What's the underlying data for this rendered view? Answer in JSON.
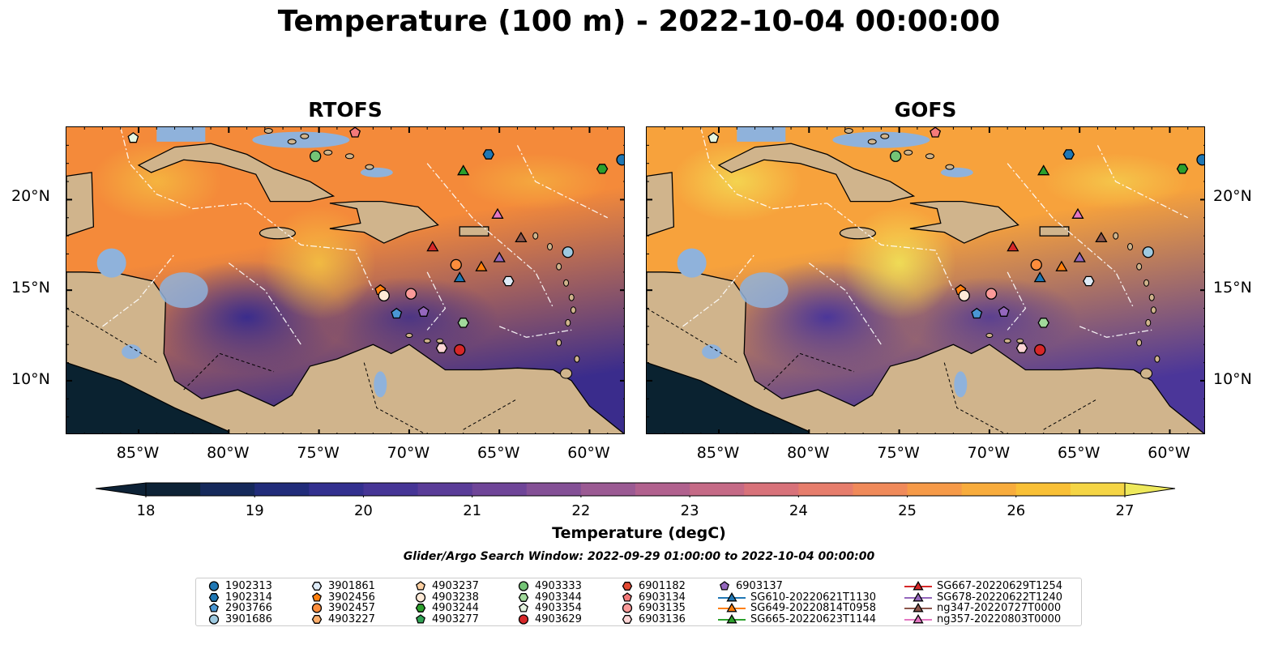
{
  "title": "Temperature (100 m) - 2022-10-04 00:00:00",
  "panels": [
    {
      "name": "RTOFS",
      "palette": {
        "cool": "#3a2c8c",
        "warm": "#f48a3a",
        "hot": "#f5c542"
      }
    },
    {
      "name": "GOFS",
      "palette": {
        "cool": "#4b3699",
        "warm": "#f7a23c",
        "hot": "#f2e858"
      }
    }
  ],
  "x_ticks": [
    "85°W",
    "80°W",
    "75°W",
    "70°W",
    "65°W",
    "60°W"
  ],
  "y_ticks": [
    "20°N",
    "15°N",
    "10°N"
  ],
  "colorbar": {
    "title": "Temperature (degC)",
    "ticks": [
      "18",
      "19",
      "20",
      "21",
      "22",
      "23",
      "24",
      "25",
      "26",
      "27"
    ],
    "colors": [
      "#0d2236",
      "#15295b",
      "#212c7a",
      "#33308f",
      "#463596",
      "#5a3c98",
      "#6f4598",
      "#845096",
      "#9b5a93",
      "#b1618e",
      "#c56a86",
      "#d8727a",
      "#e67d6c",
      "#f08a5a",
      "#f69a48",
      "#f8ac3c",
      "#f9c036",
      "#f5d545",
      "#eee95c"
    ]
  },
  "search_window": "Glider/Argo Search Window: 2022-09-29 01:00:00 to 2022-10-04 00:00:00",
  "colors": {
    "land": "#d0b48c",
    "pacific": "#0a2230",
    "lake": "#8fb2db"
  },
  "legend": [
    {
      "label": "1902313",
      "shape": "circle",
      "color": "#1f77b4"
    },
    {
      "label": "1902314",
      "shape": "hexagon",
      "color": "#1f77b4"
    },
    {
      "label": "2903766",
      "shape": "pentagon",
      "color": "#4a97d4"
    },
    {
      "label": "3901686",
      "shape": "circle",
      "color": "#9ecae1"
    },
    {
      "label": "3901861",
      "shape": "hexagon",
      "color": "#deebf7"
    },
    {
      "label": "3902456",
      "shape": "pentagon",
      "color": "#ff7f0e"
    },
    {
      "label": "3902457",
      "shape": "circle",
      "color": "#fd8d3c"
    },
    {
      "label": "4903227",
      "shape": "hexagon",
      "color": "#fdae6b"
    },
    {
      "label": "4903237",
      "shape": "pentagon",
      "color": "#fdd0a2"
    },
    {
      "label": "4903238",
      "shape": "circle",
      "color": "#feead7"
    },
    {
      "label": "4903244",
      "shape": "hexagon",
      "color": "#2ca02c"
    },
    {
      "label": "4903277",
      "shape": "pentagon",
      "color": "#31a354"
    },
    {
      "label": "4903333",
      "shape": "circle",
      "color": "#74c476"
    },
    {
      "label": "4903344",
      "shape": "hexagon",
      "color": "#a1d99b"
    },
    {
      "label": "4903354",
      "shape": "pentagon",
      "color": "#e5f5e0"
    },
    {
      "label": "4903629",
      "shape": "circle",
      "color": "#d62728"
    },
    {
      "label": "6901182",
      "shape": "hexagon",
      "color": "#e34a33"
    },
    {
      "label": "6903134",
      "shape": "pentagon",
      "color": "#f47a7a"
    },
    {
      "label": "6903135",
      "shape": "circle",
      "color": "#fb9a99"
    },
    {
      "label": "6903136",
      "shape": "hexagon",
      "color": "#fdd5d5"
    },
    {
      "label": "6903137",
      "shape": "pentagon",
      "color": "#9467bd"
    },
    {
      "label": "SG610-20220621T1130",
      "shape": "triangle",
      "color": "#1f77b4"
    },
    {
      "label": "SG649-20220814T0958",
      "shape": "triangle",
      "color": "#ff7f0e"
    },
    {
      "label": "SG665-20220623T1144",
      "shape": "triangle",
      "color": "#2ca02c"
    },
    {
      "label": "SG667-20220629T1254",
      "shape": "triangle",
      "color": "#d62728"
    },
    {
      "label": "SG678-20220622T1240",
      "shape": "triangle",
      "color": "#9467bd"
    },
    {
      "label": "ng347-20220727T0000",
      "shape": "triangle",
      "color": "#8c564b"
    },
    {
      "label": "ng357-20220803T0000",
      "shape": "triangle",
      "color": "#e377c2"
    }
  ],
  "markers": [
    {
      "lon": -85.3,
      "lat": 23.4,
      "ref": 14
    },
    {
      "lon": -75.2,
      "lat": 22.4,
      "ref": 12
    },
    {
      "lon": -73.0,
      "lat": 23.7,
      "ref": 17
    },
    {
      "lon": -67.0,
      "lat": 21.6,
      "ref": 23
    },
    {
      "lon": -65.6,
      "lat": 22.5,
      "ref": 1
    },
    {
      "lon": -59.3,
      "lat": 21.7,
      "ref": 10
    },
    {
      "lon": -58.2,
      "lat": 22.2,
      "ref": 0
    },
    {
      "lon": -65.1,
      "lat": 19.2,
      "ref": 27
    },
    {
      "lon": -68.7,
      "lat": 17.4,
      "ref": 24
    },
    {
      "lon": -67.4,
      "lat": 16.4,
      "ref": 6
    },
    {
      "lon": -66.0,
      "lat": 16.3,
      "ref": 22
    },
    {
      "lon": -63.8,
      "lat": 17.9,
      "ref": 26
    },
    {
      "lon": -65.0,
      "lat": 16.8,
      "ref": 25
    },
    {
      "lon": -61.2,
      "lat": 17.1,
      "ref": 3
    },
    {
      "lon": -67.2,
      "lat": 15.7,
      "ref": 21
    },
    {
      "lon": -64.5,
      "lat": 15.5,
      "ref": 4
    },
    {
      "lon": -71.6,
      "lat": 15.0,
      "ref": 5
    },
    {
      "lon": -71.4,
      "lat": 14.7,
      "ref": 9
    },
    {
      "lon": -69.9,
      "lat": 14.8,
      "ref": 18
    },
    {
      "lon": -70.7,
      "lat": 13.7,
      "ref": 2
    },
    {
      "lon": -69.2,
      "lat": 13.8,
      "ref": 20
    },
    {
      "lon": -67.0,
      "lat": 13.2,
      "ref": 13
    },
    {
      "lon": -68.2,
      "lat": 11.8,
      "ref": 19
    },
    {
      "lon": -67.2,
      "lat": 11.7,
      "ref": 15
    }
  ]
}
